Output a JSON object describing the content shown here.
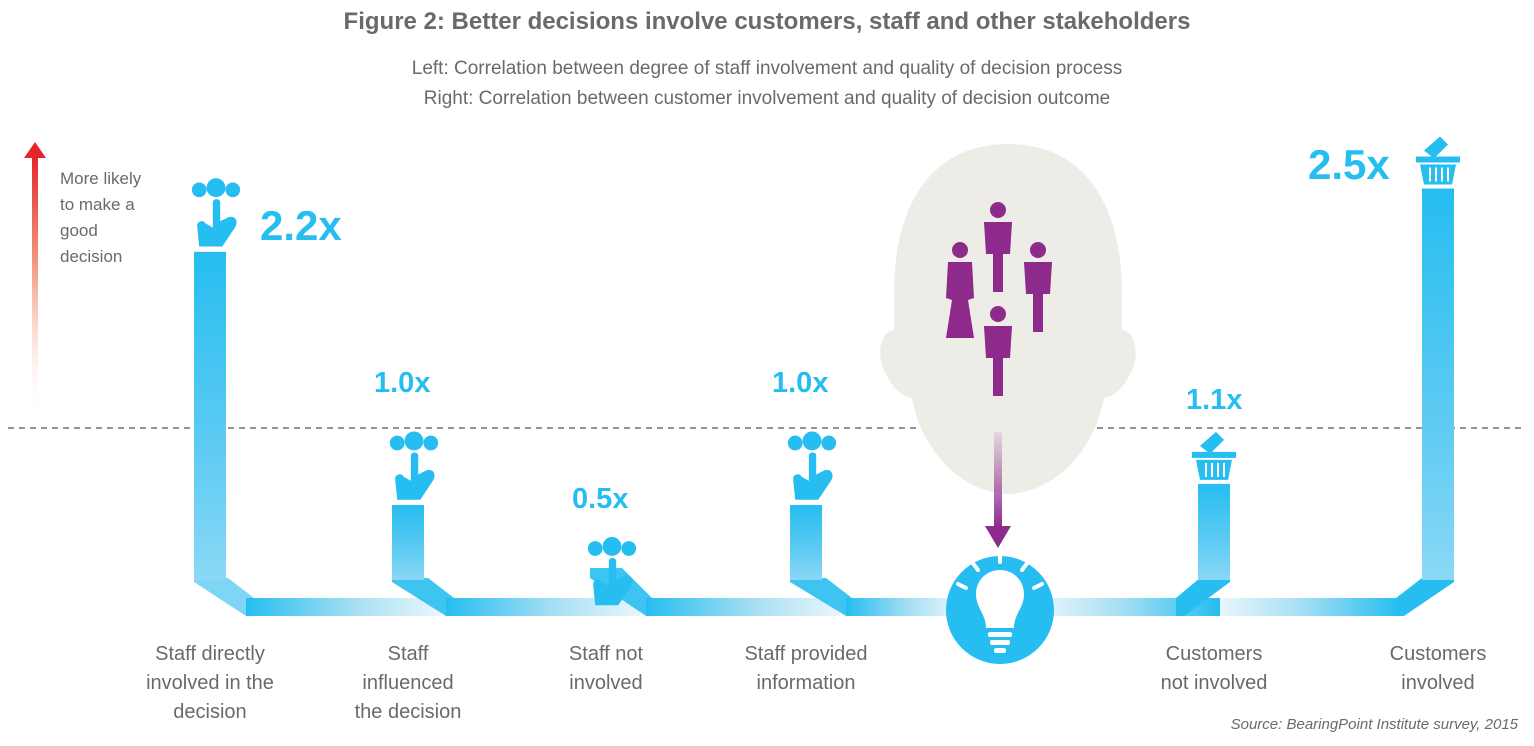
{
  "title": "Figure 2: Better decisions involve customers, staff and other stakeholders",
  "subtitle_left": "Left: Correlation between degree of staff involvement and quality of decision process",
  "subtitle_right": "Right: Correlation between customer involvement and quality of decision outcome",
  "y_axis_label": "More likely\nto make a\ngood\ndecision",
  "source": "Source: BearingPoint Institute survey, 2015",
  "colors": {
    "bar": "#26bdf0",
    "people": "#8e2a8c",
    "arrow_top": "#e4242b",
    "head": "#edece6"
  },
  "chart_data": {
    "type": "bar",
    "categories": [
      "Staff directly\ninvolved in the\ndecision",
      "Staff\ninfluenced\nthe decision",
      "Staff not\ninvolved",
      "Staff provided\ninformation",
      "Customers\nnot involved",
      "Customers\ninvolved"
    ],
    "values": [
      2.2,
      1.0,
      0.5,
      1.0,
      1.1,
      2.5
    ],
    "value_labels": [
      "2.2x",
      "1.0x",
      "0.5x",
      "1.0x",
      "1.1x",
      "2.5x"
    ],
    "icons": [
      "pointing-hand-icon",
      "pointing-hand-icon",
      "pointing-hand-icon",
      "pointing-hand-icon",
      "shopping-basket-icon",
      "shopping-basket-icon"
    ],
    "baseline": 1.0
  }
}
